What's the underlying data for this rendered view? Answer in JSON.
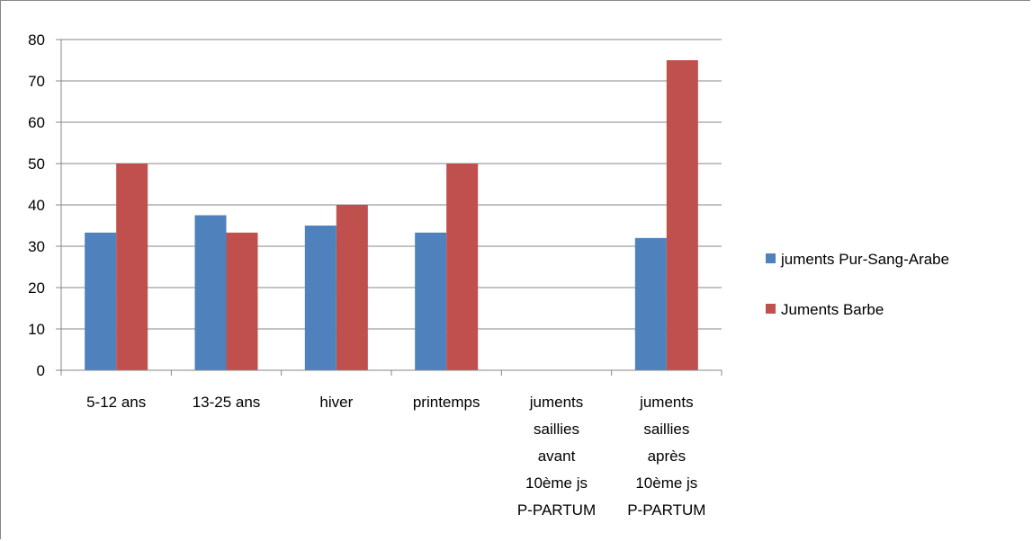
{
  "chart_data": {
    "type": "bar",
    "title": "",
    "xlabel": "",
    "ylabel": "",
    "ylim": [
      0,
      80
    ],
    "ytick_step": 10,
    "grid": true,
    "legend_position": "right",
    "categories": [
      "5-12 ans",
      "13-25 ans",
      "hiver",
      "printemps",
      "juments saillies avant 10ème js P-PARTUM",
      "juments saillies après 10ème js P-PARTUM"
    ],
    "category_lines": [
      [
        "5-12 ans"
      ],
      [
        "13-25 ans"
      ],
      [
        "hiver"
      ],
      [
        "printemps"
      ],
      [
        "juments",
        "saillies",
        "avant",
        "10ème js",
        "P-PARTUM"
      ],
      [
        "juments",
        "saillies",
        "après",
        "10ème js",
        "P-PARTUM"
      ]
    ],
    "series": [
      {
        "name": "juments Pur-Sang-Arabe",
        "color": "#4f81bd",
        "values": [
          33.3,
          37.5,
          35,
          33.3,
          0,
          32
        ]
      },
      {
        "name": "Juments Barbe",
        "color": "#c0504d",
        "values": [
          50,
          33.3,
          40,
          50,
          0,
          75
        ]
      }
    ]
  }
}
